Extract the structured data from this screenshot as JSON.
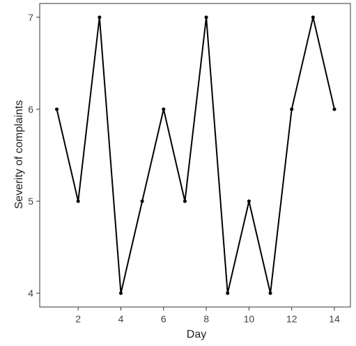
{
  "chart_data": {
    "type": "line",
    "title": "",
    "xlabel": "Day",
    "ylabel": "Severity of complaints",
    "x": [
      1,
      2,
      3,
      4,
      5,
      6,
      7,
      8,
      9,
      10,
      11,
      12,
      13,
      14
    ],
    "series": [
      {
        "values": [
          6,
          5,
          7,
          4,
          5,
          6,
          5,
          7,
          4,
          5,
          4,
          6,
          7,
          6
        ]
      }
    ],
    "xticks": [
      2,
      4,
      6,
      8,
      10,
      12,
      14
    ],
    "yticks": [
      4,
      5,
      6,
      7
    ],
    "xlim": [
      0.2,
      14.75
    ],
    "ylim": [
      3.85,
      7.15
    ],
    "grid": false,
    "legend": "none",
    "colors": {
      "line": "#000000",
      "frame": "#333333",
      "text": "#444444"
    }
  }
}
